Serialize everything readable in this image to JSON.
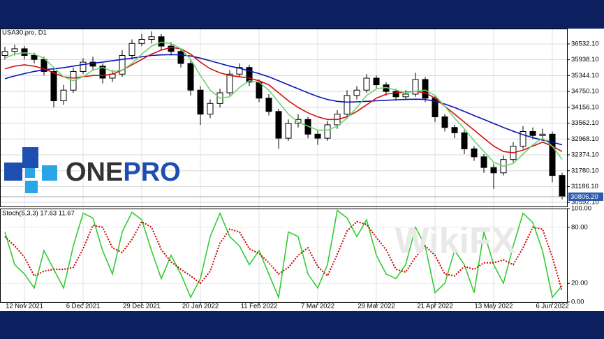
{
  "chart_data": [
    {
      "type": "candlestick",
      "title": "USA30.pro, D1",
      "open": [
        36100,
        36250,
        36350,
        36100,
        35950,
        35500,
        34400,
        34800,
        35500,
        35850,
        35700,
        35250,
        35400,
        36100,
        36550,
        36700,
        36800,
        36450,
        36250,
        35800,
        34800,
        33900,
        34300,
        34700,
        35400,
        35650,
        35100,
        34500,
        34000,
        33000,
        33550,
        33700,
        33150,
        33000,
        33500,
        33900,
        34600,
        34800,
        35250,
        35000,
        34750,
        34550,
        34650,
        35200,
        34500,
        33800,
        33400,
        33200,
        32600,
        32300,
        31900,
        31700,
        32200,
        32700,
        33250,
        33100,
        33150,
        31600
      ],
      "high": [
        36420,
        36500,
        36450,
        36200,
        36050,
        35600,
        35000,
        35650,
        36000,
        36050,
        35800,
        35550,
        36300,
        36700,
        36900,
        37000,
        36900,
        36600,
        36350,
        35900,
        34950,
        34450,
        34850,
        35550,
        35800,
        35750,
        35200,
        34650,
        34100,
        33700,
        33900,
        33800,
        33300,
        33650,
        34050,
        34800,
        34950,
        35400,
        35350,
        35100,
        34850,
        34800,
        35450,
        35300,
        34600,
        33900,
        33500,
        33300,
        32700,
        32400,
        32050,
        32350,
        32850,
        33450,
        33400,
        33350,
        33250,
        31700
      ],
      "low": [
        35950,
        36100,
        35950,
        35800,
        35350,
        34150,
        34250,
        34700,
        35400,
        35550,
        35050,
        35100,
        35300,
        35950,
        36450,
        36550,
        36300,
        36100,
        35650,
        34600,
        33500,
        33750,
        34150,
        34600,
        35300,
        34950,
        34350,
        33850,
        32600,
        32900,
        33400,
        33000,
        32750,
        32900,
        33350,
        33800,
        34450,
        34700,
        34850,
        34600,
        34400,
        34450,
        34550,
        34350,
        33600,
        33250,
        33000,
        32400,
        32150,
        31700,
        31100,
        31600,
        32100,
        32600,
        32950,
        33000,
        31350,
        30700
      ],
      "close": [
        36250,
        36350,
        36100,
        35950,
        35500,
        34400,
        34800,
        35500,
        35850,
        35700,
        35250,
        35400,
        36100,
        36550,
        36700,
        36800,
        36450,
        36250,
        35800,
        34800,
        33900,
        34300,
        34700,
        35400,
        35650,
        35100,
        34500,
        34000,
        33000,
        33550,
        33700,
        33150,
        33000,
        33500,
        33900,
        34600,
        34800,
        35250,
        35000,
        34750,
        34550,
        34650,
        35200,
        34500,
        33800,
        33400,
        33200,
        32600,
        32300,
        31900,
        31700,
        32200,
        32700,
        33250,
        33100,
        33150,
        31600,
        30806
      ],
      "bullish_color": "#ffffff",
      "bearish_color": "#000000",
      "series": [
        {
          "color": "#0a14b4",
          "values": [
            35230,
            35330,
            35420,
            35500,
            35560,
            35600,
            35640,
            35700,
            35760,
            35810,
            35850,
            35900,
            35950,
            36000,
            36050,
            36100,
            36120,
            36130,
            36120,
            36080,
            36000,
            35900,
            35800,
            35700,
            35620,
            35520,
            35420,
            35300,
            35150,
            35000,
            34850,
            34700,
            34560,
            34450,
            34380,
            34350,
            34360,
            34380,
            34400,
            34420,
            34440,
            34450,
            34460,
            34450,
            34380,
            34280,
            34150,
            34000,
            33850,
            33700,
            33550,
            33400,
            33260,
            33130,
            33020,
            32930,
            32850,
            32750
          ]
        },
        {
          "color": "#d40f0f",
          "values": [
            35600,
            35700,
            35750,
            35700,
            35600,
            35450,
            35300,
            35250,
            35300,
            35350,
            35350,
            35400,
            35550,
            35750,
            35950,
            36150,
            36300,
            36400,
            36350,
            36150,
            35850,
            35600,
            35450,
            35350,
            35300,
            35250,
            35150,
            35000,
            34700,
            34400,
            34150,
            33950,
            33800,
            33700,
            33700,
            33800,
            34000,
            34250,
            34500,
            34650,
            34700,
            34720,
            34750,
            34700,
            34500,
            34200,
            33900,
            33600,
            33300,
            33000,
            32700,
            32500,
            32450,
            32550,
            32700,
            32850,
            32700,
            32500
          ]
        },
        {
          "color": "#6fd46f",
          "values": [
            36000,
            36150,
            36200,
            36150,
            36000,
            35650,
            35300,
            35150,
            35300,
            35550,
            35650,
            35500,
            35550,
            35800,
            36150,
            36450,
            36600,
            36550,
            36350,
            35950,
            35350,
            34800,
            34500,
            34550,
            34900,
            35150,
            35100,
            34800,
            34350,
            33900,
            33600,
            33450,
            33300,
            33300,
            33450,
            33750,
            34150,
            34600,
            34850,
            34900,
            34800,
            34700,
            34750,
            34800,
            34600,
            34200,
            33750,
            33350,
            32900,
            32500,
            32100,
            31950,
            32050,
            32400,
            32750,
            33000,
            32700,
            32200
          ]
        }
      ],
      "ylim": [
        30440,
        37080
      ],
      "yticks": [
        {
          "value": 30592.1,
          "label": "30592.10"
        },
        {
          "value": 31186.1,
          "label": "31186.10"
        },
        {
          "value": 31780.1,
          "label": "31780.10"
        },
        {
          "value": 32374.1,
          "label": "32374.10"
        },
        {
          "value": 32968.1,
          "label": "32968.10"
        },
        {
          "value": 33562.1,
          "label": "33562.10"
        },
        {
          "value": 34156.1,
          "label": "34156.10"
        },
        {
          "value": 34750.1,
          "label": "34750.10"
        },
        {
          "value": 35344.1,
          "label": "35344.10"
        },
        {
          "value": 35938.1,
          "label": "35938.10"
        },
        {
          "value": 36532.1,
          "label": "36532.10"
        }
      ],
      "price_line": {
        "value": 30806.2,
        "label": "30806.20"
      },
      "grid": true
    },
    {
      "type": "line",
      "title": "Stoch(5,3,3) 17.63 11.67",
      "categories": [
        null,
        null,
        "12 Nov 2021",
        null,
        null,
        null,
        null,
        null,
        "6 Dec 2021",
        null,
        null,
        null,
        null,
        null,
        "29 Dec 2021",
        null,
        null,
        null,
        null,
        null,
        "20 Jan 2022",
        null,
        null,
        null,
        null,
        null,
        "11 Feb 2022",
        null,
        null,
        null,
        null,
        null,
        "7 Mar 2022",
        null,
        null,
        null,
        null,
        null,
        "29 Mar 2022",
        null,
        null,
        null,
        null,
        null,
        "21 Apr 2022",
        null,
        null,
        null,
        null,
        null,
        "13 May 2022",
        null,
        null,
        null,
        null,
        null,
        "6 Jun 2022",
        null
      ],
      "series": [
        {
          "color": "#33cc33",
          "values": [
            75,
            40,
            30,
            15,
            55,
            35,
            15,
            60,
            95,
            90,
            55,
            30,
            75,
            96,
            88,
            55,
            25,
            50,
            30,
            5,
            25,
            70,
            95,
            70,
            60,
            40,
            55,
            30,
            5,
            75,
            70,
            30,
            15,
            40,
            98,
            90,
            70,
            88,
            50,
            30,
            25,
            40,
            80,
            60,
            10,
            20,
            55,
            40,
            10,
            75,
            40,
            20,
            60,
            95,
            85,
            55,
            5,
            17.63
          ]
        },
        {
          "color": "#cc0000",
          "dashed": true,
          "values": [
            70,
            60,
            48,
            28,
            33,
            35,
            35,
            37,
            57,
            82,
            80,
            58,
            53,
            67,
            86,
            80,
            56,
            43,
            35,
            28,
            20,
            33,
            63,
            78,
            75,
            57,
            52,
            42,
            30,
            37,
            50,
            58,
            38,
            28,
            51,
            76,
            86,
            83,
            69,
            56,
            35,
            32,
            48,
            60,
            50,
            30,
            28,
            38,
            35,
            42,
            42,
            45,
            40,
            58,
            80,
            78,
            48,
            11.67
          ]
        }
      ],
      "ylim": [
        0,
        100
      ],
      "yticks": [
        {
          "value": 0,
          "label": "0.00"
        },
        {
          "value": 20,
          "label": "20.00"
        },
        {
          "value": 80,
          "label": "80.00"
        },
        {
          "value": 100,
          "label": "100.00"
        }
      ],
      "grid": true
    }
  ],
  "branding": {
    "logo": [
      "ONE",
      "PRO"
    ],
    "watermark": "WikiFX"
  }
}
